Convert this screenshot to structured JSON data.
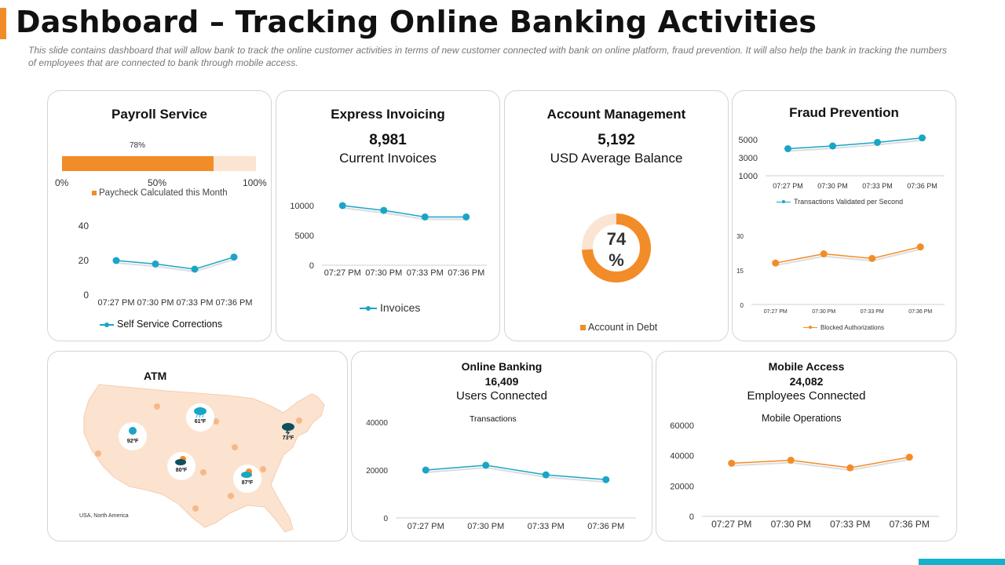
{
  "header": {
    "title": "Dashboard – Tracking Online Banking Activities",
    "description": "This slide contains dashboard that will allow bank to track the online customer activities in terms of new customer connected with bank on online platform, fraud prevention. It will also help the bank in tracking the numbers of employees that are connected to bank through mobile access."
  },
  "colors": {
    "accent": "#f28c28",
    "teal": "#1aa5c6",
    "light_orange": "#fce4d2",
    "map_fill": "#fbe3d0"
  },
  "payroll": {
    "title": "Payroll Service",
    "progress": {
      "value": 0.78,
      "label": "78%",
      "ticks": [
        "0%",
        "50%",
        "100%"
      ],
      "legend": "Paycheck Calculated this Month"
    },
    "legend": "Self Service Corrections"
  },
  "invoicing": {
    "title": "Express Invoicing",
    "value": "8,981",
    "label": "Current Invoices",
    "legend": "Invoices"
  },
  "account": {
    "title": "Account Management",
    "value": "5,192",
    "label": "USD Average Balance",
    "donut_value": 0.74,
    "donut_label_num": "74",
    "donut_label_pct": "%",
    "legend": "Account in Debt"
  },
  "fraud": {
    "title": "Fraud Prevention",
    "legend_top": "Transactions Validated per Second",
    "legend_bottom": "Blocked Authorizations"
  },
  "atm": {
    "title": "ATM",
    "region": "USA, North America",
    "weather": [
      {
        "icon": "raindrop-icon",
        "temp": "92ºF"
      },
      {
        "icon": "rain-cloud-icon",
        "temp": "61ºF"
      },
      {
        "icon": "storm-cloud-icon",
        "temp": "73ºF"
      },
      {
        "icon": "sun-cloud-icon",
        "temp": "80ºF"
      },
      {
        "icon": "sun-cloud-icon",
        "temp": "87ºF"
      }
    ]
  },
  "online": {
    "title": "Online Banking",
    "value": "16,409",
    "label": "Users Connected",
    "chart_title": "Transactions"
  },
  "mobile": {
    "title": "Mobile Access",
    "value": "24,082",
    "label": "Employees Connected",
    "chart_title": "Mobile Operations"
  },
  "chart_data": [
    {
      "id": "self_service",
      "type": "line",
      "x": [
        "07:27 PM",
        "07:30 PM",
        "07:33 PM",
        "07:36 PM"
      ],
      "series": [
        {
          "name": "Self Service Corrections",
          "values": [
            20,
            18,
            15,
            22
          ]
        }
      ],
      "yticks": [
        0,
        20,
        40
      ],
      "ylim": [
        0,
        40
      ],
      "color": "#1aa5c6"
    },
    {
      "id": "invoices",
      "type": "line",
      "x": [
        "07:27 PM",
        "07:30 PM",
        "07:33 PM",
        "07:36 PM"
      ],
      "series": [
        {
          "name": "Invoices",
          "values": [
            10000,
            9200,
            8100,
            8100
          ]
        }
      ],
      "yticks": [
        0,
        5000,
        10000
      ],
      "ylim": [
        0,
        10000
      ],
      "color": "#1aa5c6"
    },
    {
      "id": "fraud_top",
      "type": "line",
      "x": [
        "07:27 PM",
        "07:30 PM",
        "07:33 PM",
        "07:36 PM"
      ],
      "series": [
        {
          "name": "Transactions Validated per Second",
          "values": [
            4000,
            4300,
            4700,
            5200
          ]
        }
      ],
      "yticks": [
        1000,
        3000,
        5000
      ],
      "ylim": [
        1000,
        5000
      ],
      "color": "#1aa5c6"
    },
    {
      "id": "fraud_bottom",
      "type": "line",
      "x": [
        "07:27 PM",
        "07:30 PM",
        "07:33 PM",
        "07:36 PM"
      ],
      "series": [
        {
          "name": "Blocked Authorizations",
          "values": [
            18,
            22,
            20,
            25
          ]
        }
      ],
      "yticks": [
        0,
        15,
        30
      ],
      "ylim": [
        0,
        30
      ],
      "color": "#f28c28"
    },
    {
      "id": "transactions",
      "type": "line",
      "x": [
        "07:27 PM",
        "07:30 PM",
        "07:33 PM",
        "07:36 PM"
      ],
      "series": [
        {
          "name": "Transactions",
          "values": [
            20000,
            22000,
            18000,
            16000
          ]
        }
      ],
      "yticks": [
        0,
        20000,
        40000
      ],
      "ylim": [
        0,
        40000
      ],
      "color": "#1aa5c6"
    },
    {
      "id": "mobile_ops",
      "type": "line",
      "x": [
        "07:27 PM",
        "07:30 PM",
        "07:33 PM",
        "07:36 PM"
      ],
      "series": [
        {
          "name": "Mobile Operations",
          "values": [
            35000,
            37000,
            32000,
            39000
          ]
        }
      ],
      "yticks": [
        0,
        20000,
        40000,
        60000
      ],
      "ylim": [
        0,
        60000
      ],
      "color": "#f28c28"
    }
  ]
}
